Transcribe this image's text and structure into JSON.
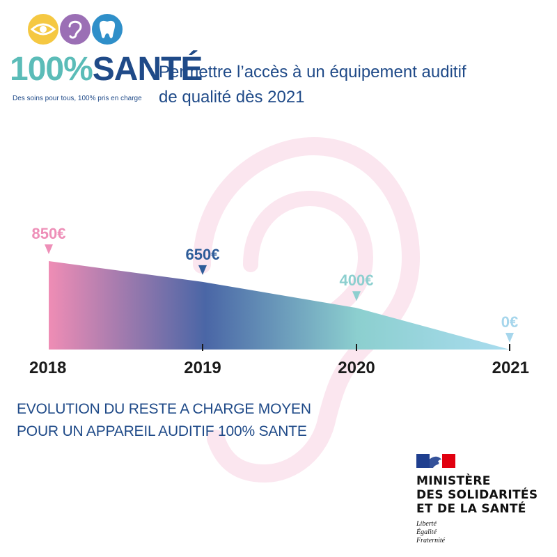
{
  "logo": {
    "wordmark_part1": "100%",
    "wordmark_part2": "SANTÉ",
    "tagline": "Des soins pour tous, 100% pris en charge",
    "icons": [
      "eye-icon",
      "ear-icon",
      "tooth-icon"
    ],
    "colors": {
      "eye": "#f5c842",
      "ear": "#9b6fb5",
      "tooth": "#2f8fc9",
      "teal": "#5bbcb8",
      "navy": "#1f4a88"
    }
  },
  "headline": {
    "line1": "Permettre l’accès à un équipement auditif",
    "line2": "de qualité dès 2021"
  },
  "chart_data": {
    "type": "area",
    "title": "",
    "xlabel": "",
    "ylabel": "",
    "categories": [
      "2018",
      "2019",
      "2020",
      "2021"
    ],
    "values": [
      850,
      650,
      400,
      0
    ],
    "value_labels": [
      "850€",
      "650€",
      "400€",
      "0€"
    ],
    "label_colors": [
      "#ee8fb8",
      "#2e5c99",
      "#8dcfcf",
      "#a6d6ec"
    ],
    "gradient_colors": [
      "#ef8db5",
      "#4a66a6",
      "#8ccfcf",
      "#a9dcef"
    ],
    "ylim": [
      0,
      850
    ],
    "grid": false,
    "legend": "none"
  },
  "caption": {
    "line1": "EVOLUTION DU RESTE A CHARGE MOYEN",
    "line2": "POUR UN APPAREIL AUDITIF 100% SANTE"
  },
  "government": {
    "name_line1": "MINISTÈRE",
    "name_line2": "DES SOLIDARITÉS",
    "name_line3": "ET DE LA SANTÉ",
    "motto_line1": "Liberté",
    "motto_line2": "Égalité",
    "motto_line3": "Fraternité",
    "flag_colors": [
      "#1f3f8f",
      "#ffffff",
      "#e1000f"
    ]
  }
}
